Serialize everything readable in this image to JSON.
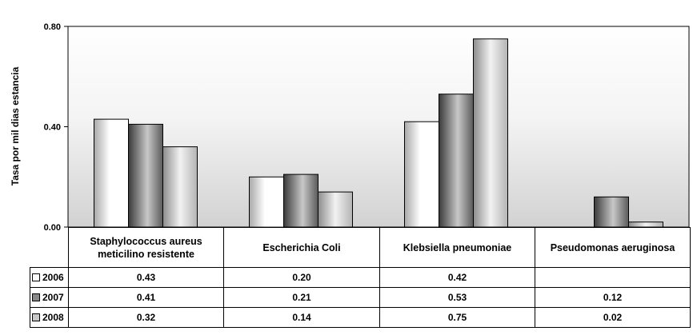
{
  "chart_data": {
    "type": "bar",
    "title": "",
    "xlabel": "",
    "ylabel": "Tasa por mil dias estancia",
    "ylim": [
      0,
      0.8
    ],
    "yticks": [
      "0.00",
      "0.40",
      "0.80"
    ],
    "ytick_values": [
      0,
      0.4,
      0.8
    ],
    "grid": false,
    "legend": "data-table",
    "categories": [
      "Staphylococcus aureus meticilino resistente",
      "Escherichia Coli",
      "Klebsiella pneumoniae",
      "Pseudomonas aeruginosa"
    ],
    "series": [
      {
        "name": "2006",
        "values": [
          0.43,
          0.2,
          0.42,
          null
        ],
        "labels": [
          "0.43",
          "0.20",
          "0.42",
          ""
        ],
        "color": "#ffffff"
      },
      {
        "name": "2007",
        "values": [
          0.41,
          0.21,
          0.53,
          0.12
        ],
        "labels": [
          "0.41",
          "0.21",
          "0.53",
          "0.12"
        ],
        "color": "#8a8a8a"
      },
      {
        "name": "2008",
        "values": [
          0.32,
          0.14,
          0.75,
          0.02
        ],
        "labels": [
          "0.32",
          "0.14",
          "0.75",
          "0.02"
        ],
        "color": "#c8c8c8"
      }
    ]
  }
}
